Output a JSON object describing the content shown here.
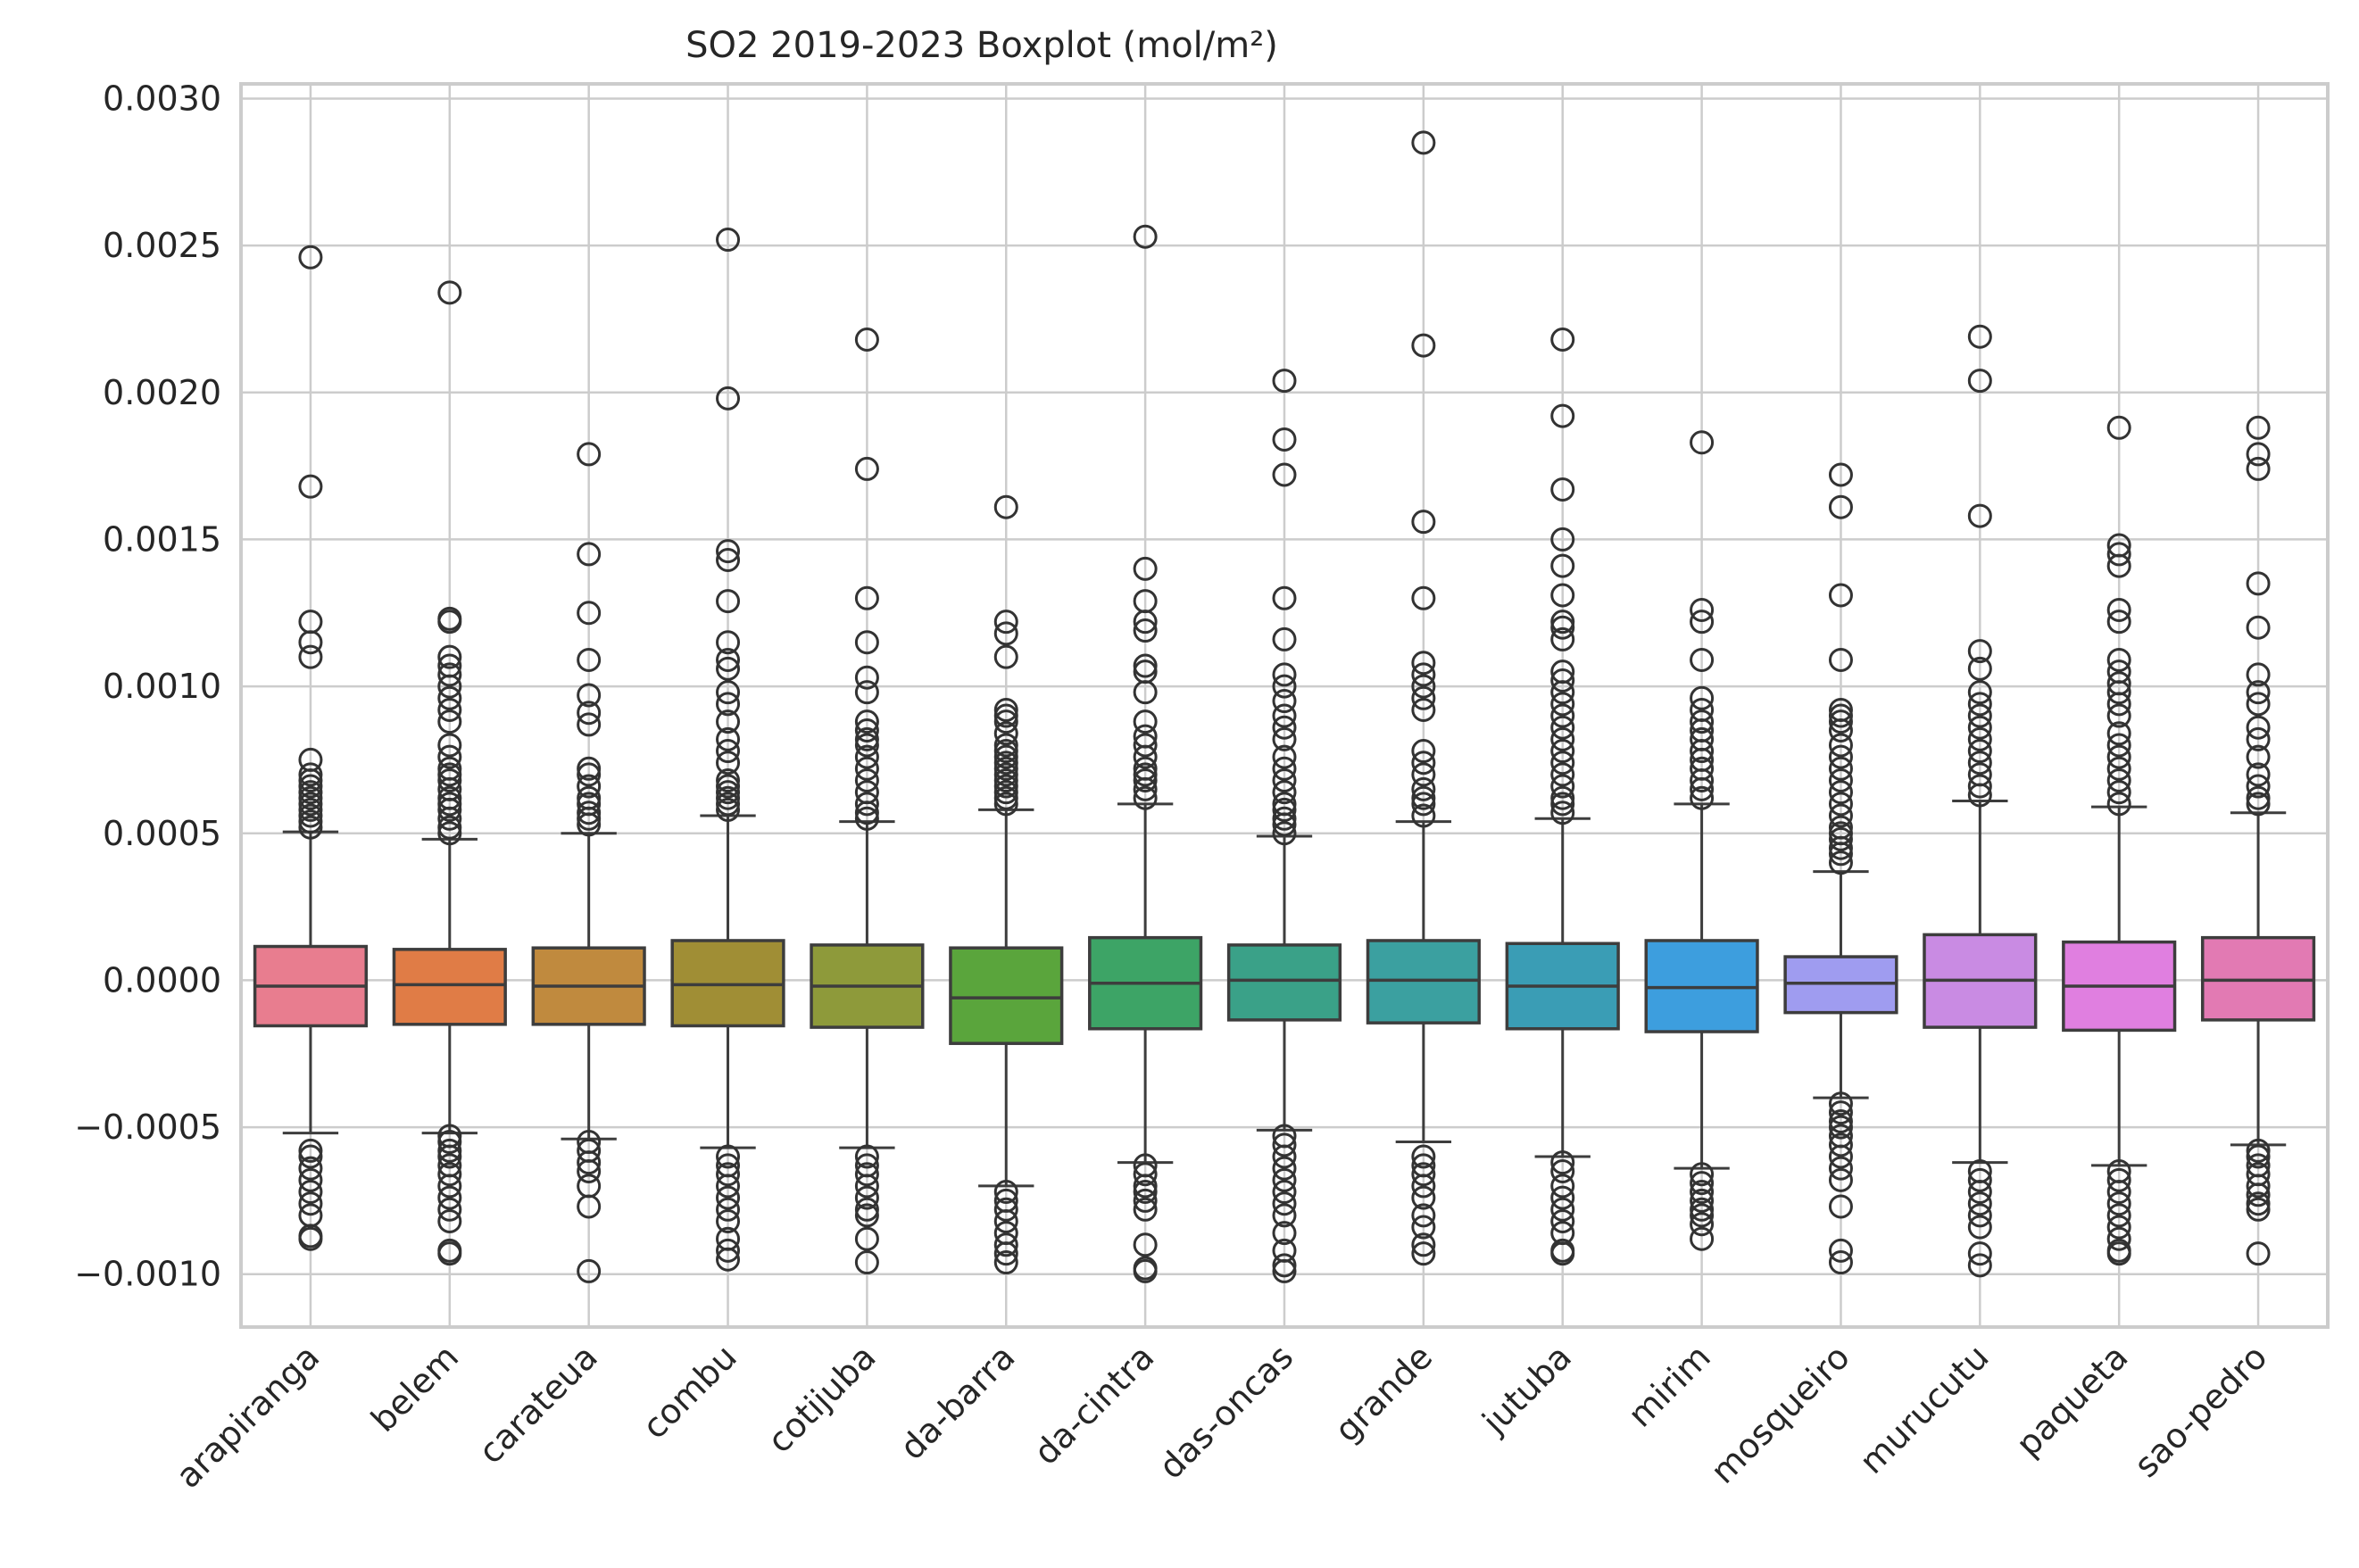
{
  "chart_data": {
    "type": "boxplot",
    "title": "SO2 2019-2023 Boxplot (mol/m²)",
    "xlabel": "",
    "ylabel": "",
    "ylim": [
      -0.00118,
      0.00305
    ],
    "yticks": [
      -0.001,
      -0.0005,
      0.0,
      0.0005,
      0.001,
      0.0015,
      0.002,
      0.0025,
      0.003
    ],
    "ytick_labels": [
      "−0.0010",
      "−0.0005",
      "0.0000",
      "0.0005",
      "0.0010",
      "0.0015",
      "0.0020",
      "0.0025",
      "0.0030"
    ],
    "grid": true,
    "categories": [
      "arapiranga",
      "belem",
      "carateua",
      "combu",
      "cotijuba",
      "da-barra",
      "da-cintra",
      "das-oncas",
      "grande",
      "jutuba",
      "mirim",
      "mosqueiro",
      "murucutu",
      "paqueta",
      "sao-pedro"
    ],
    "boxes": [
      {
        "name": "arapiranga",
        "color": "#e87d8f",
        "q1": -0.000155,
        "median": -2e-05,
        "q3": 0.000115,
        "whisker_low": -0.00052,
        "whisker_high": 0.000505,
        "fliers": [
          0.00246,
          0.00168,
          0.00122,
          0.00115,
          0.0011,
          0.00075,
          0.0007,
          0.00068,
          0.00066,
          0.00064,
          0.00062,
          0.0006,
          0.00058,
          0.00056,
          0.00054,
          0.00052,
          -0.00058,
          -0.0006,
          -0.00064,
          -0.00068,
          -0.00072,
          -0.00076,
          -0.0008,
          -0.00087,
          -0.00088
        ]
      },
      {
        "name": "belem",
        "color": "#e07c46",
        "q1": -0.00015,
        "median": -1.5e-05,
        "q3": 0.000105,
        "whisker_low": -0.00052,
        "whisker_high": 0.00048,
        "fliers": [
          0.00234,
          0.00123,
          0.00122,
          0.0011,
          0.00107,
          0.00104,
          0.001,
          0.00096,
          0.00092,
          0.00088,
          0.0008,
          0.00076,
          0.00072,
          0.0007,
          0.00068,
          0.00065,
          0.00062,
          0.0006,
          0.00058,
          0.00055,
          0.00052,
          0.0005,
          -0.00053,
          -0.00055,
          -0.00058,
          -0.0006,
          -0.00063,
          -0.00066,
          -0.0007,
          -0.00074,
          -0.00078,
          -0.00082,
          -0.00092,
          -0.00093
        ]
      },
      {
        "name": "carateua",
        "color": "#c08a3e",
        "q1": -0.00015,
        "median": -2e-05,
        "q3": 0.00011,
        "whisker_low": -0.00054,
        "whisker_high": 0.0005,
        "fliers": [
          0.00179,
          0.00145,
          0.00125,
          0.00109,
          0.00097,
          0.00091,
          0.00087,
          0.00072,
          0.0007,
          0.00066,
          0.00062,
          0.0006,
          0.00057,
          0.00055,
          0.00053,
          -0.00055,
          -0.00058,
          -0.00062,
          -0.00065,
          -0.0007,
          -0.00077,
          -0.00099
        ]
      },
      {
        "name": "combu",
        "color": "#a08e35",
        "q1": -0.000155,
        "median": -1.5e-05,
        "q3": 0.000135,
        "whisker_low": -0.00057,
        "whisker_high": 0.00056,
        "fliers": [
          0.00252,
          0.00198,
          0.00146,
          0.00143,
          0.00129,
          0.00115,
          0.00109,
          0.00106,
          0.00098,
          0.00094,
          0.00088,
          0.00082,
          0.00078,
          0.00074,
          0.00068,
          0.00066,
          0.00064,
          0.00062,
          0.0006,
          0.00058,
          -0.0006,
          -0.00063,
          -0.00066,
          -0.0007,
          -0.00074,
          -0.00078,
          -0.00082,
          -0.00088,
          -0.00092,
          -0.00095
        ]
      },
      {
        "name": "cotijuba",
        "color": "#8e9a3a",
        "q1": -0.00016,
        "median": -2e-05,
        "q3": 0.00012,
        "whisker_low": -0.00057,
        "whisker_high": 0.00054,
        "fliers": [
          0.00218,
          0.00174,
          0.0013,
          0.00115,
          0.00103,
          0.00098,
          0.00088,
          0.00085,
          0.00082,
          0.0008,
          0.00076,
          0.00072,
          0.00068,
          0.00064,
          0.0006,
          0.00057,
          0.00055,
          -0.0006,
          -0.00063,
          -0.00066,
          -0.0007,
          -0.00074,
          -0.00078,
          -0.0008,
          -0.00088,
          -0.00096
        ]
      },
      {
        "name": "da-barra",
        "color": "#5aa53c",
        "q1": -0.000215,
        "median": -6e-05,
        "q3": 0.00011,
        "whisker_low": -0.0007,
        "whisker_high": 0.00058,
        "fliers": [
          0.00161,
          0.00122,
          0.00118,
          0.0011,
          0.00092,
          0.0009,
          0.00088,
          0.00084,
          0.0008,
          0.00078,
          0.00076,
          0.00074,
          0.00072,
          0.0007,
          0.00068,
          0.00066,
          0.00064,
          0.00062,
          0.0006,
          -0.00072,
          -0.00075,
          -0.00078,
          -0.00082,
          -0.00086,
          -0.0009,
          -0.00093,
          -0.00096
        ]
      },
      {
        "name": "da-cintra",
        "color": "#3da466",
        "q1": -0.000165,
        "median": -1e-05,
        "q3": 0.000145,
        "whisker_low": -0.00062,
        "whisker_high": 0.0006,
        "fliers": [
          0.00253,
          0.0014,
          0.00129,
          0.00122,
          0.00119,
          0.00107,
          0.00105,
          0.00098,
          0.00088,
          0.00083,
          0.0008,
          0.00076,
          0.00072,
          0.0007,
          0.00068,
          0.00065,
          0.00062,
          -0.00063,
          -0.00066,
          -0.0007,
          -0.00072,
          -0.00075,
          -0.00078,
          -0.0009,
          -0.00098,
          -0.00099
        ]
      },
      {
        "name": "das-oncas",
        "color": "#3aa188",
        "q1": -0.000135,
        "median": 0.0,
        "q3": 0.00012,
        "whisker_low": -0.00051,
        "whisker_high": 0.00049,
        "fliers": [
          0.00204,
          0.00184,
          0.00172,
          0.0013,
          0.00116,
          0.00104,
          0.001,
          0.00095,
          0.0009,
          0.00086,
          0.00082,
          0.00076,
          0.00072,
          0.00068,
          0.00064,
          0.0006,
          0.00058,
          0.00055,
          0.00053,
          0.0005,
          -0.00053,
          -0.00056,
          -0.0006,
          -0.00064,
          -0.00068,
          -0.00072,
          -0.00076,
          -0.0008,
          -0.00086,
          -0.00092,
          -0.00097,
          -0.00099
        ]
      },
      {
        "name": "grande",
        "color": "#3ba0a0",
        "q1": -0.000145,
        "median": 0.0,
        "q3": 0.000135,
        "whisker_low": -0.00055,
        "whisker_high": 0.00054,
        "fliers": [
          0.00285,
          0.00216,
          0.00156,
          0.0013,
          0.00108,
          0.00104,
          0.001,
          0.00096,
          0.00092,
          0.00078,
          0.00074,
          0.0007,
          0.00065,
          0.00062,
          0.0006,
          0.00056,
          -0.0006,
          -0.00063,
          -0.00066,
          -0.0007,
          -0.00074,
          -0.0008,
          -0.00084,
          -0.0009,
          -0.00093
        ]
      },
      {
        "name": "jutuba",
        "color": "#3a9db5",
        "q1": -0.000165,
        "median": -2e-05,
        "q3": 0.000125,
        "whisker_low": -0.0006,
        "whisker_high": 0.00055,
        "fliers": [
          0.00218,
          0.00192,
          0.00167,
          0.0015,
          0.00141,
          0.00131,
          0.00122,
          0.0012,
          0.00116,
          0.00105,
          0.00102,
          0.00098,
          0.00094,
          0.0009,
          0.00086,
          0.00082,
          0.00078,
          0.00074,
          0.0007,
          0.00066,
          0.00062,
          0.0006,
          0.00057,
          -0.00062,
          -0.00065,
          -0.0007,
          -0.00074,
          -0.00078,
          -0.00082,
          -0.00086,
          -0.00092,
          -0.00093
        ]
      },
      {
        "name": "mirim",
        "color": "#3d9ede",
        "q1": -0.000175,
        "median": -2.5e-05,
        "q3": 0.000135,
        "whisker_low": -0.00064,
        "whisker_high": 0.0006,
        "fliers": [
          0.00183,
          0.00126,
          0.00122,
          0.00109,
          0.00096,
          0.00092,
          0.00088,
          0.00085,
          0.00082,
          0.00078,
          0.00075,
          0.00072,
          0.00068,
          0.00065,
          0.00062,
          -0.00066,
          -0.00069,
          -0.00072,
          -0.00075,
          -0.00078,
          -0.0008,
          -0.00083,
          -0.00088
        ]
      },
      {
        "name": "mosqueiro",
        "color": "#9f9cf0",
        "q1": -0.00011,
        "median": -1e-05,
        "q3": 8e-05,
        "whisker_low": -0.0004,
        "whisker_high": 0.00037,
        "fliers": [
          0.00172,
          0.00161,
          0.00131,
          0.00109,
          0.00092,
          0.0009,
          0.00088,
          0.00085,
          0.0008,
          0.00076,
          0.00072,
          0.00068,
          0.00064,
          0.0006,
          0.00056,
          0.00052,
          0.0005,
          0.00048,
          0.00045,
          0.00043,
          0.0004,
          -0.00042,
          -0.00045,
          -0.00048,
          -0.0005,
          -0.00053,
          -0.00056,
          -0.0006,
          -0.00064,
          -0.00068,
          -0.00077,
          -0.00092,
          -0.00096
        ]
      },
      {
        "name": "murucutu",
        "color": "#c98be3",
        "q1": -0.00016,
        "median": 0.0,
        "q3": 0.000155,
        "whisker_low": -0.00062,
        "whisker_high": 0.00061,
        "fliers": [
          0.00219,
          0.00204,
          0.00158,
          0.00112,
          0.00106,
          0.00098,
          0.00094,
          0.0009,
          0.00086,
          0.00082,
          0.00078,
          0.00074,
          0.0007,
          0.00066,
          0.00063,
          -0.00065,
          -0.00068,
          -0.00072,
          -0.00076,
          -0.0008,
          -0.00084,
          -0.00093,
          -0.00097
        ]
      },
      {
        "name": "paqueta",
        "color": "#e07fe0",
        "q1": -0.00017,
        "median": -2e-05,
        "q3": 0.00013,
        "whisker_low": -0.00063,
        "whisker_high": 0.00059,
        "fliers": [
          0.00188,
          0.00148,
          0.00145,
          0.00141,
          0.00126,
          0.00122,
          0.00109,
          0.00105,
          0.00101,
          0.00098,
          0.00094,
          0.0009,
          0.00084,
          0.0008,
          0.00076,
          0.00072,
          0.00068,
          0.00064,
          0.0006,
          -0.00065,
          -0.00068,
          -0.00072,
          -0.00076,
          -0.0008,
          -0.00084,
          -0.00088,
          -0.00092,
          -0.00093
        ]
      },
      {
        "name": "sao-pedro",
        "color": "#e27ab3",
        "q1": -0.000135,
        "median": 0.0,
        "q3": 0.000145,
        "whisker_low": -0.00056,
        "whisker_high": 0.00057,
        "fliers": [
          0.00188,
          0.00179,
          0.00174,
          0.00135,
          0.0012,
          0.00104,
          0.00098,
          0.00094,
          0.00086,
          0.00082,
          0.00076,
          0.0007,
          0.00066,
          0.00062,
          0.0006,
          -0.00058,
          -0.0006,
          -0.00063,
          -0.00066,
          -0.0007,
          -0.00073,
          -0.00076,
          -0.00078,
          -0.00093
        ]
      }
    ]
  }
}
